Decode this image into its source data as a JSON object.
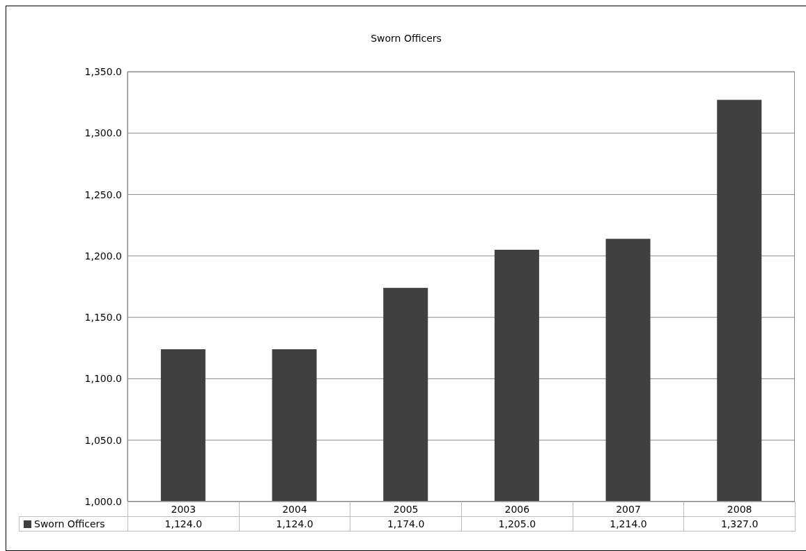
{
  "chart_data": {
    "type": "bar",
    "title": "Sworn Officers",
    "categories": [
      "2003",
      "2004",
      "2005",
      "2006",
      "2007",
      "2008"
    ],
    "series": [
      {
        "name": "Sworn Officers",
        "color": "#404040",
        "values": [
          1124,
          1124,
          1174,
          1205,
          1214,
          1327
        ],
        "value_labels": [
          "1,124.0",
          "1,124.0",
          "1,174.0",
          "1,205.0",
          "1,214.0",
          "1,327.0"
        ]
      }
    ],
    "ylim": [
      1000,
      1350
    ],
    "yticks": [
      {
        "value": 1000,
        "label": "1,000.0"
      },
      {
        "value": 1050,
        "label": "1,050.0"
      },
      {
        "value": 1100,
        "label": "1,100.0"
      },
      {
        "value": 1150,
        "label": "1,150.0"
      },
      {
        "value": 1200,
        "label": "1,200.0"
      },
      {
        "value": 1250,
        "label": "1,250.0"
      },
      {
        "value": 1300,
        "label": "1,300.0"
      },
      {
        "value": 1350,
        "label": "1,350.0"
      }
    ],
    "grid": "y",
    "legend": "bottom left"
  }
}
